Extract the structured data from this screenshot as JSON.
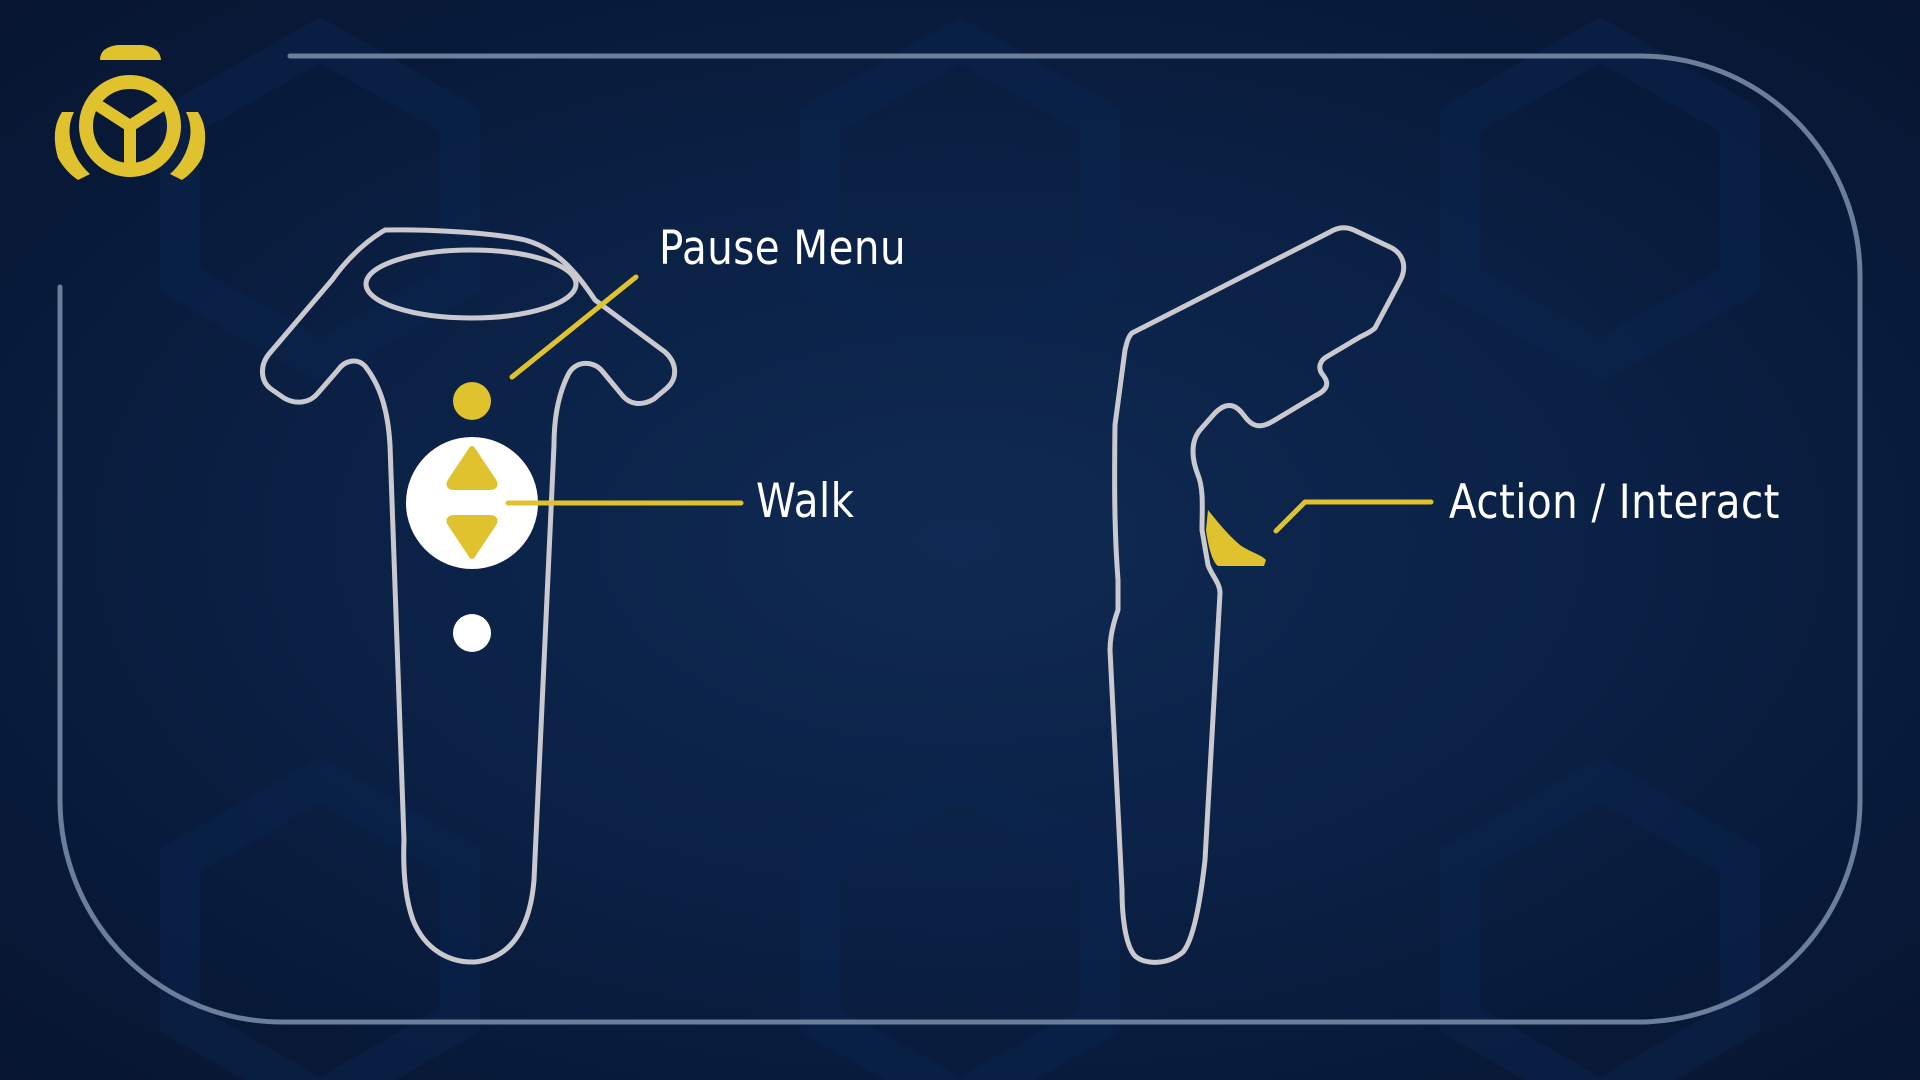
{
  "labels": {
    "pause_menu": "Pause Menu",
    "walk": "Walk",
    "action_interact": "Action / Interact"
  },
  "icons": {
    "logo": "steering-wheel-logo-icon",
    "left_controller": "vr-controller-front-icon",
    "right_controller": "vr-controller-side-icon",
    "walk_pad": "up-down-arrows-icon"
  },
  "colors": {
    "background": "#0b2146",
    "frame_line": "#6b7f9c",
    "controller_outline": "#c9c9cf",
    "accent_yellow": "#e0c22e",
    "white": "#ffffff"
  }
}
